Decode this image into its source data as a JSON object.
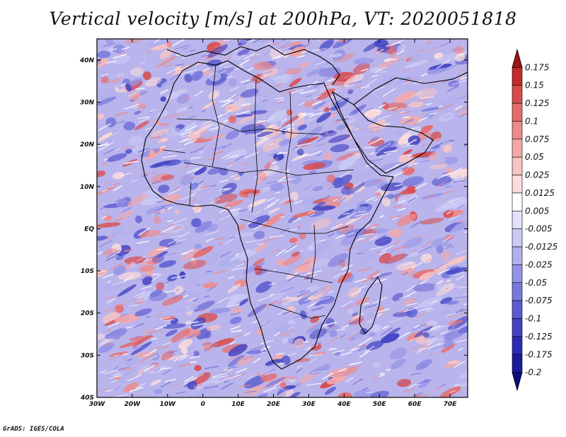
{
  "title": "Vertical velocity [m/s] at 200hPa, VT: 2020051818",
  "footer": "GrADS: IGES/COLA",
  "map": {
    "lon_range": [
      -30,
      75
    ],
    "lat_range": [
      -40,
      45
    ],
    "lon_ticks": [
      {
        "value": -30,
        "label": "30W"
      },
      {
        "value": -20,
        "label": "20W"
      },
      {
        "value": -10,
        "label": "10W"
      },
      {
        "value": 0,
        "label": "0"
      },
      {
        "value": 10,
        "label": "10E"
      },
      {
        "value": 20,
        "label": "20E"
      },
      {
        "value": 30,
        "label": "30E"
      },
      {
        "value": 40,
        "label": "40E"
      },
      {
        "value": 50,
        "label": "50E"
      },
      {
        "value": 60,
        "label": "60E"
      },
      {
        "value": 70,
        "label": "70E"
      }
    ],
    "lat_ticks": [
      {
        "value": 40,
        "label": "40N"
      },
      {
        "value": 30,
        "label": "30N"
      },
      {
        "value": 20,
        "label": "20N"
      },
      {
        "value": 10,
        "label": "10N"
      },
      {
        "value": 0,
        "label": "EQ"
      },
      {
        "value": -10,
        "label": "10S"
      },
      {
        "value": -20,
        "label": "20S"
      },
      {
        "value": -30,
        "label": "30S"
      },
      {
        "value": -40,
        "label": "40S"
      }
    ]
  },
  "colorbar": {
    "labels": [
      "0.175",
      "0.15",
      "0.125",
      "0.1",
      "0.075",
      "0.05",
      "0.025",
      "0.0125",
      "0.005",
      "-0.005",
      "-0.0125",
      "-0.025",
      "-0.05",
      "-0.075",
      "-0.1",
      "-0.125",
      "-0.175",
      "-0.2"
    ],
    "colors": [
      "#a01414",
      "#c42a2a",
      "#d84a4a",
      "#e66a6a",
      "#ee8a8a",
      "#f4a8a8",
      "#f8c4c4",
      "#fbdcdc",
      "#ffffff",
      "#e2e2fa",
      "#cacaf4",
      "#b0b0ee",
      "#9494e6",
      "#7878dc",
      "#5c5cd0",
      "#4242c2",
      "#2a2ab2",
      "#1a1a9c",
      "#0c0c80"
    ]
  }
}
